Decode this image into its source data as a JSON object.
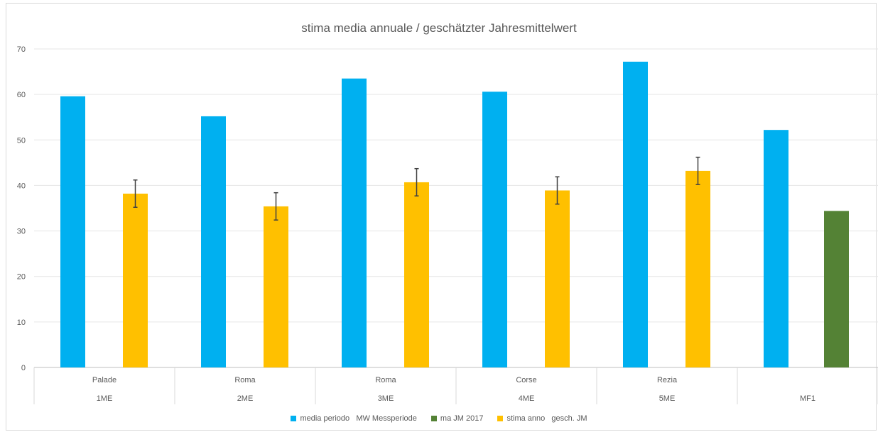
{
  "chart_data": {
    "type": "bar",
    "title": "stima media annuale / geschätzter Jahresmittelwert",
    "xlabel": "",
    "ylabel": "",
    "ylim": [
      0,
      70
    ],
    "yticks": [
      0,
      10,
      20,
      30,
      40,
      50,
      60,
      70
    ],
    "grid": true,
    "legend_position": "bottom",
    "categories": [
      {
        "label": "Palade",
        "group": "1ME"
      },
      {
        "label": "Roma",
        "group": "2ME"
      },
      {
        "label": "Roma",
        "group": "3ME"
      },
      {
        "label": "Corse",
        "group": "4ME"
      },
      {
        "label": "Rezia",
        "group": "5ME"
      },
      {
        "label": "",
        "group": "MF1"
      }
    ],
    "series": [
      {
        "name": "media periodo   MW Messperiode",
        "color": "#00b0f0",
        "values": [
          59.6,
          55.2,
          63.5,
          60.6,
          67.2,
          52.2
        ]
      },
      {
        "name": "ma JM 2017",
        "color": "#548235",
        "values": [
          null,
          null,
          null,
          null,
          null,
          34.4
        ]
      },
      {
        "name": "stima anno   gesch. JM",
        "color": "#ffc000",
        "values": [
          38.2,
          35.4,
          40.7,
          38.9,
          43.2,
          null
        ],
        "error": [
          3.0,
          3.0,
          3.0,
          3.0,
          3.0,
          null
        ]
      }
    ]
  }
}
